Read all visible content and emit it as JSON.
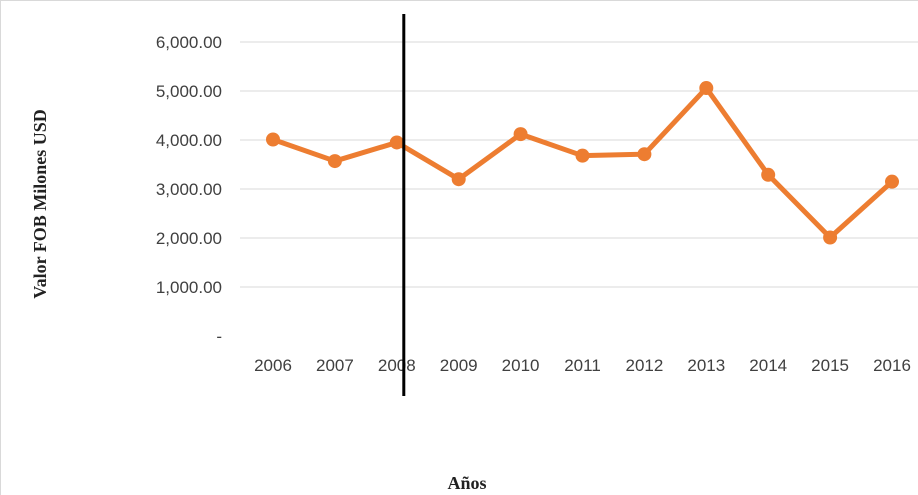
{
  "chart_data": {
    "type": "line",
    "title": "",
    "xlabel": "Años",
    "ylabel": "Valor FOB Milones USD",
    "x": [
      "2006",
      "2007",
      "2008",
      "2009",
      "2010",
      "2011",
      "2012",
      "2013",
      "2014",
      "2015",
      "2016"
    ],
    "series": [
      {
        "values": [
          4010,
          3570,
          3950,
          3200,
          4120,
          3680,
          3710,
          5060,
          3290,
          2010,
          3150
        ]
      }
    ],
    "ylim": [
      0,
      6000
    ],
    "yticks": [
      0,
      1000,
      2000,
      3000,
      4000,
      5000,
      6000
    ],
    "ytick_labels": [
      "-",
      "1,000.00",
      "2,000.00",
      "3,000.00",
      "4,000.00",
      "5,000.00",
      "6,000.00"
    ],
    "grid": true,
    "legend": "none",
    "marker_line_category": "2008",
    "colors": {
      "series": "#ED7D31",
      "grid": "#d9d9d9",
      "marker_line": "#000000"
    }
  }
}
